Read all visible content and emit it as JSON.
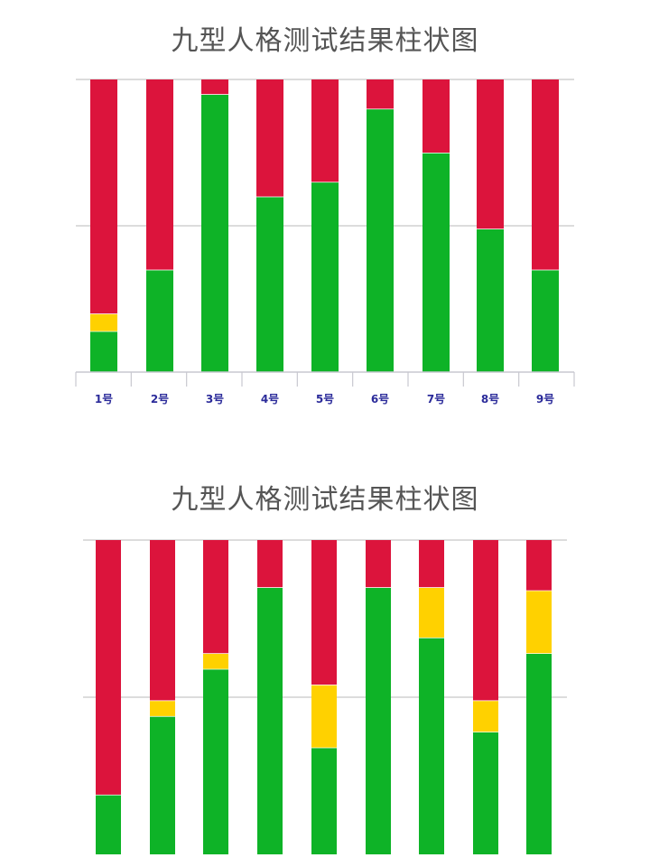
{
  "colors": {
    "green": "#0eb327",
    "yellow": "#ffd100",
    "red": "#dc143c",
    "gridline": "#c8c8c8",
    "axis": "#c8c8d0"
  },
  "chart_data": [
    {
      "type": "bar",
      "stacked": true,
      "title": "九型人格测试结果柱状图",
      "categories": [
        "1号",
        "2号",
        "3号",
        "4号",
        "5号",
        "6号",
        "7号",
        "8号",
        "9号"
      ],
      "series": [
        {
          "color": "green",
          "values": [
            14,
            35,
            95,
            60,
            65,
            90,
            75,
            49,
            35
          ]
        },
        {
          "color": "yellow",
          "values": [
            6,
            0,
            0,
            0,
            0,
            0,
            0,
            0,
            0
          ]
        },
        {
          "color": "red",
          "values": [
            80,
            65,
            5,
            40,
            35,
            10,
            25,
            51,
            65
          ]
        }
      ],
      "ylim": [
        0,
        100
      ],
      "grid": true,
      "show_tick_labels": true
    },
    {
      "type": "bar",
      "stacked": true,
      "title": "九型人格测试结果柱状图",
      "categories": [
        "",
        "",
        "",
        "",
        "",
        "",
        "",
        "",
        ""
      ],
      "series": [
        {
          "color": "green",
          "values": [
            19,
            44,
            59,
            85,
            34,
            85,
            69,
            39,
            64
          ]
        },
        {
          "color": "yellow",
          "values": [
            0,
            5,
            5,
            0,
            20,
            0,
            16,
            10,
            20
          ]
        },
        {
          "color": "red",
          "values": [
            81,
            51,
            36,
            15,
            46,
            15,
            15,
            51,
            16
          ]
        }
      ],
      "ylim": [
        0,
        100
      ],
      "grid": true,
      "show_tick_labels": false
    }
  ]
}
